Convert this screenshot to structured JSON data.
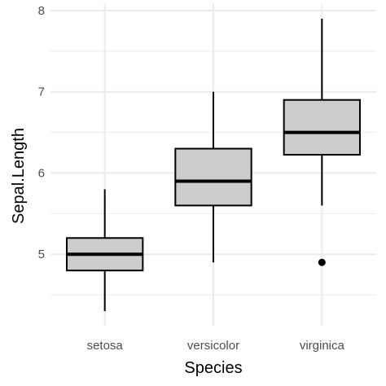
{
  "chart_data": {
    "type": "boxplot",
    "title": "",
    "xlabel": "Species",
    "ylabel": "Sepal.Length",
    "categories": [
      "setosa",
      "versicolor",
      "virginica"
    ],
    "boxes": [
      {
        "category": "setosa",
        "whisker_low": 4.3,
        "q1": 4.8,
        "median": 5.0,
        "q3": 5.2,
        "whisker_high": 5.8,
        "outliers": []
      },
      {
        "category": "versicolor",
        "whisker_low": 4.9,
        "q1": 5.6,
        "median": 5.9,
        "q3": 6.3,
        "whisker_high": 7.0,
        "outliers": []
      },
      {
        "category": "virginica",
        "whisker_low": 5.6,
        "q1": 6.225,
        "median": 6.5,
        "q3": 6.9,
        "whisker_high": 7.9,
        "outliers": [
          4.9
        ]
      }
    ],
    "y_ticks": [
      5,
      6,
      7,
      8
    ],
    "ylim": [
      4.12,
      8.08
    ],
    "grid": true,
    "box_fill": "#cccccc",
    "box_stroke": "#000000",
    "grid_color": "#ebebeb",
    "background": "#ffffff"
  }
}
